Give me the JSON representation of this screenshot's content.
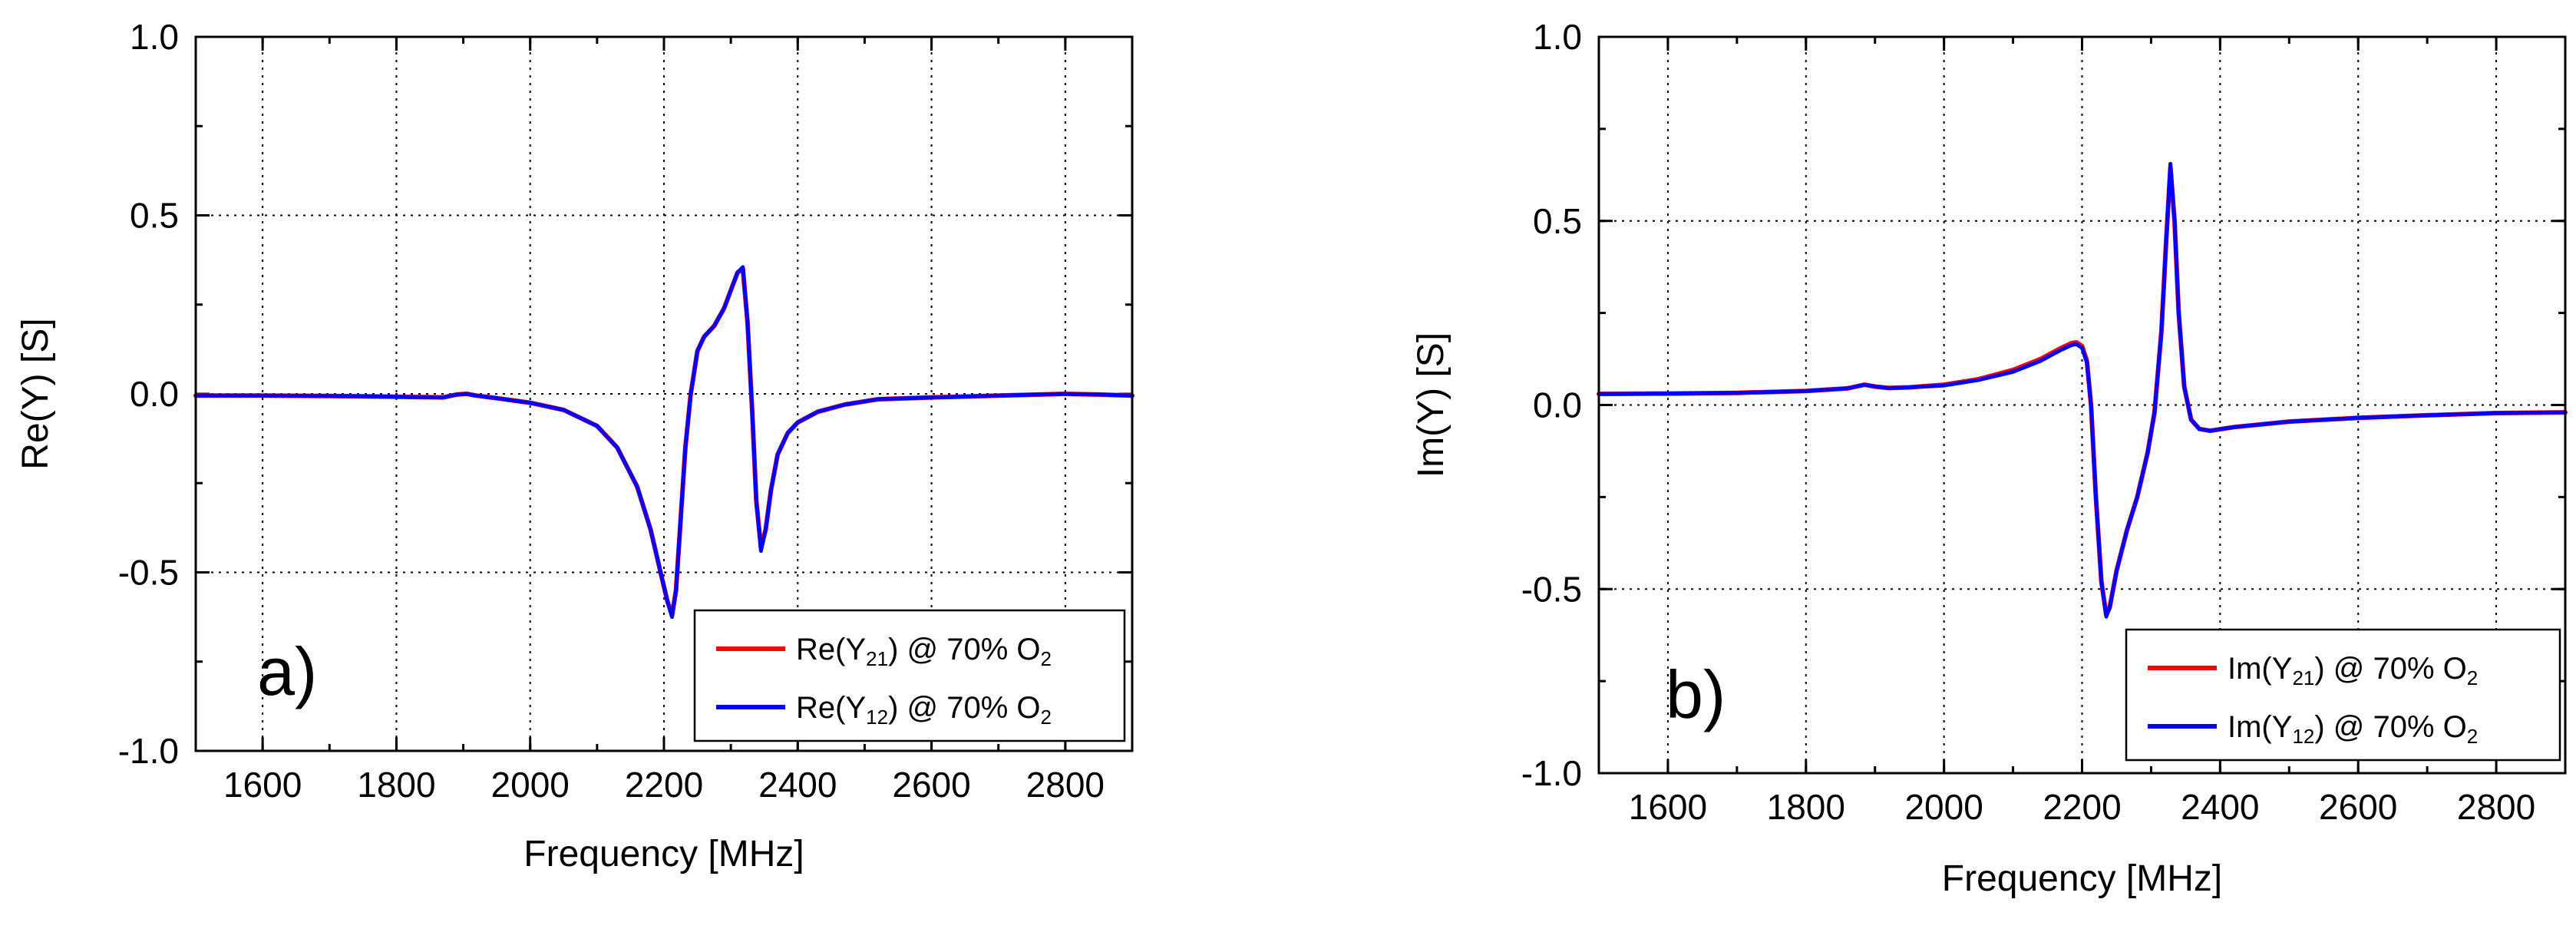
{
  "chart_data": [
    {
      "type": "line",
      "panel_label": "a)",
      "xlabel": "Frequency [MHz]",
      "ylabel": "Re(Y) [S]",
      "xlim": [
        1500,
        2900
      ],
      "ylim": [
        -1.0,
        1.0
      ],
      "x_ticks": [
        1600,
        1800,
        2000,
        2200,
        2400,
        2600,
        2800
      ],
      "x_tick_labels": [
        "1600",
        "1800",
        "2000",
        "2200",
        "2400",
        "2600",
        "2800"
      ],
      "y_ticks": [
        -1.0,
        -0.5,
        0.0,
        0.5,
        1.0
      ],
      "y_tick_labels": [
        "-1.0",
        "-0.5",
        "0.0",
        "0.5",
        "1.0"
      ],
      "grid": true,
      "legend_position": "bottom-right",
      "series": [
        {
          "name": "Re(Y21) @ 70% O2",
          "legend": {
            "prefix": "Re(Y",
            "sub": "21",
            "mid": ") @ 70% O",
            "sub2": "2"
          },
          "color": "#ff0000",
          "x": [
            1500,
            1600,
            1700,
            1800,
            1870,
            1890,
            1905,
            1920,
            1950,
            2000,
            2050,
            2100,
            2130,
            2160,
            2180,
            2195,
            2205,
            2212,
            2218,
            2225,
            2232,
            2240,
            2250,
            2260,
            2275,
            2290,
            2300,
            2310,
            2318,
            2325,
            2332,
            2338,
            2345,
            2352,
            2360,
            2370,
            2385,
            2400,
            2430,
            2470,
            2520,
            2600,
            2700,
            2800,
            2850,
            2900
          ],
          "y": [
            -0.005,
            -0.005,
            -0.006,
            -0.008,
            -0.01,
            -0.002,
            0.0,
            -0.005,
            -0.012,
            -0.025,
            -0.045,
            -0.09,
            -0.15,
            -0.26,
            -0.38,
            -0.5,
            -0.58,
            -0.62,
            -0.55,
            -0.35,
            -0.15,
            0.0,
            0.12,
            0.16,
            0.19,
            0.24,
            0.29,
            0.34,
            0.35,
            0.2,
            -0.05,
            -0.3,
            -0.43,
            -0.38,
            -0.27,
            -0.17,
            -0.11,
            -0.08,
            -0.05,
            -0.03,
            -0.015,
            -0.01,
            -0.005,
            0.0,
            -0.002,
            -0.005
          ]
        },
        {
          "name": "Re(Y12) @ 70% O2",
          "legend": {
            "prefix": "Re(Y",
            "sub": "12",
            "mid": ") @ 70% O",
            "sub2": "2"
          },
          "color": "#0000ff",
          "x": [
            1500,
            1600,
            1700,
            1800,
            1870,
            1890,
            1905,
            1920,
            1950,
            2000,
            2050,
            2100,
            2130,
            2160,
            2180,
            2195,
            2205,
            2212,
            2218,
            2225,
            2232,
            2240,
            2250,
            2260,
            2275,
            2290,
            2300,
            2310,
            2318,
            2325,
            2332,
            2338,
            2345,
            2352,
            2360,
            2370,
            2385,
            2400,
            2430,
            2470,
            2520,
            2600,
            2700,
            2800,
            2850,
            2900
          ],
          "y": [
            -0.005,
            -0.005,
            -0.006,
            -0.008,
            -0.01,
            -0.002,
            0.0,
            -0.005,
            -0.012,
            -0.025,
            -0.045,
            -0.09,
            -0.15,
            -0.26,
            -0.38,
            -0.5,
            -0.58,
            -0.625,
            -0.55,
            -0.35,
            -0.15,
            0.0,
            0.12,
            0.16,
            0.19,
            0.24,
            0.29,
            0.34,
            0.355,
            0.2,
            -0.05,
            -0.3,
            -0.44,
            -0.38,
            -0.27,
            -0.17,
            -0.11,
            -0.08,
            -0.05,
            -0.03,
            -0.015,
            -0.01,
            -0.005,
            0.0,
            -0.002,
            -0.005
          ]
        }
      ]
    },
    {
      "type": "line",
      "panel_label": "b)",
      "xlabel": "Frequency [MHz]",
      "ylabel": "Im(Y) [S]",
      "xlim": [
        1500,
        2900
      ],
      "ylim": [
        -1.0,
        1.0
      ],
      "x_ticks": [
        1600,
        1800,
        2000,
        2200,
        2400,
        2600,
        2800
      ],
      "x_tick_labels": [
        "1600",
        "1800",
        "2000",
        "2200",
        "2400",
        "2600",
        "2800"
      ],
      "y_ticks": [
        -1.0,
        -0.5,
        0.0,
        0.5,
        1.0
      ],
      "y_tick_labels": [
        "-1.0",
        "-0.5",
        "0.0",
        "0.5",
        "1.0"
      ],
      "grid": true,
      "legend_position": "bottom-right",
      "series": [
        {
          "name": "Im(Y21) @ 70% O2",
          "legend": {
            "prefix": "Im(Y",
            "sub": "21",
            "mid": ") @ 70% O",
            "sub2": "2"
          },
          "color": "#ff0000",
          "x": [
            1500,
            1600,
            1700,
            1800,
            1860,
            1885,
            1900,
            1920,
            1950,
            2000,
            2050,
            2100,
            2140,
            2170,
            2185,
            2192,
            2200,
            2207,
            2213,
            2220,
            2228,
            2235,
            2240,
            2250,
            2265,
            2280,
            2295,
            2305,
            2315,
            2322,
            2328,
            2334,
            2340,
            2348,
            2358,
            2370,
            2385,
            2420,
            2500,
            2600,
            2700,
            2800,
            2900
          ],
          "y": [
            0.03,
            0.031,
            0.033,
            0.038,
            0.045,
            0.055,
            0.05,
            0.046,
            0.048,
            0.055,
            0.07,
            0.095,
            0.125,
            0.155,
            0.168,
            0.17,
            0.16,
            0.12,
            0.0,
            -0.25,
            -0.48,
            -0.57,
            -0.55,
            -0.45,
            -0.34,
            -0.25,
            -0.13,
            -0.02,
            0.2,
            0.45,
            0.645,
            0.5,
            0.25,
            0.05,
            -0.04,
            -0.065,
            -0.07,
            -0.06,
            -0.045,
            -0.035,
            -0.028,
            -0.022,
            -0.02
          ]
        },
        {
          "name": "Im(Y12) @ 70% O2",
          "legend": {
            "prefix": "Im(Y",
            "sub": "12",
            "mid": ") @ 70% O",
            "sub2": "2"
          },
          "color": "#0000ff",
          "x": [
            1500,
            1600,
            1700,
            1800,
            1860,
            1885,
            1900,
            1920,
            1950,
            2000,
            2050,
            2100,
            2140,
            2170,
            2185,
            2192,
            2200,
            2207,
            2213,
            2220,
            2228,
            2235,
            2240,
            2250,
            2265,
            2280,
            2295,
            2305,
            2315,
            2322,
            2328,
            2334,
            2340,
            2348,
            2358,
            2370,
            2385,
            2420,
            2500,
            2600,
            2700,
            2800,
            2900
          ],
          "y": [
            0.03,
            0.031,
            0.033,
            0.038,
            0.045,
            0.055,
            0.05,
            0.046,
            0.048,
            0.053,
            0.068,
            0.09,
            0.12,
            0.15,
            0.163,
            0.165,
            0.155,
            0.115,
            0.0,
            -0.25,
            -0.48,
            -0.575,
            -0.55,
            -0.45,
            -0.34,
            -0.25,
            -0.13,
            -0.02,
            0.2,
            0.45,
            0.655,
            0.5,
            0.25,
            0.05,
            -0.04,
            -0.065,
            -0.07,
            -0.06,
            -0.045,
            -0.035,
            -0.028,
            -0.022,
            -0.02
          ]
        }
      ]
    }
  ]
}
